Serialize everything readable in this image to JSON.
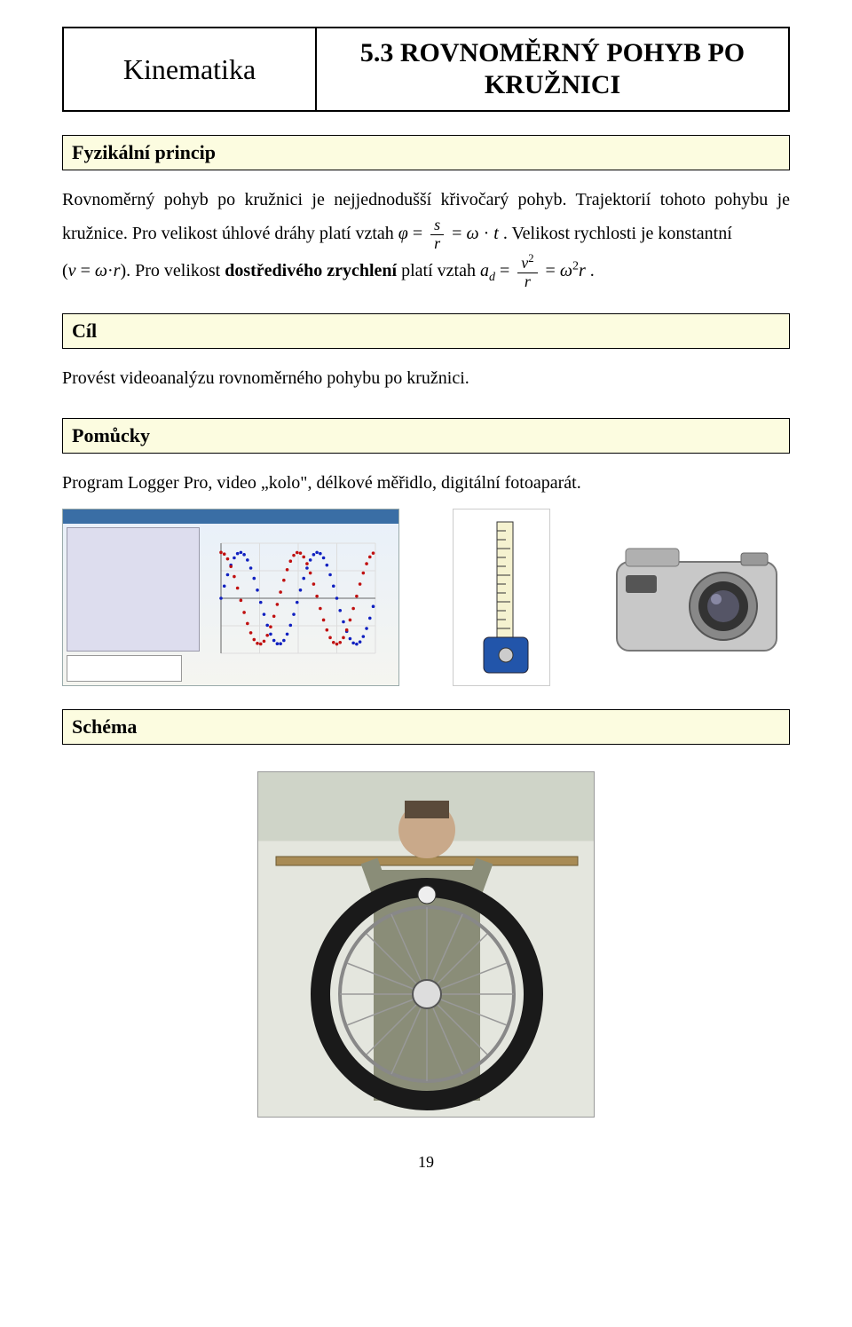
{
  "header": {
    "left": "Kinematika",
    "right": "5.3 ROVNOMĚRNÝ POHYB PO KRUŽNICI"
  },
  "sections": {
    "princip": "Fyzikální princip",
    "cil": "Cíl",
    "pomucky": "Pomůcky",
    "schema": "Schéma"
  },
  "text": {
    "p1a": "Rovnoměrný pohyb po kružnici je nejjednodušší křivočarý pohyb. Trajektorií tohoto pohybu je kružnice. Pro velikost úhlové dráhy platí vztah ",
    "p1b": ". Velikost rychlosti je konstantní",
    "p2a": "(",
    "p2b": " = ",
    "p2c": "). Pro velikost ",
    "p2bold": "dostředivého zrychlení",
    "p2d": " platí vztah ",
    "p2e": ".",
    "cil_body": "Provést videoanalýzu rovnoměrného pohybu po kružnici.",
    "pomucky_body": "Program Logger Pro, video „kolo\", délkové měřidlo, digitální fotoaparát."
  },
  "formula": {
    "phi": "φ",
    "eq": " = ",
    "s": "s",
    "r": "r",
    "omega": "ω",
    "cdot": "·",
    "t": "t",
    "v": "v",
    "a": "a",
    "d": "d",
    "two": "2"
  },
  "page_number": "19",
  "chart": {
    "type": "line",
    "series": [
      {
        "name": "X",
        "color": "#1020c0",
        "shape": "sine",
        "amp": 50,
        "period": 140,
        "phase": 0
      },
      {
        "name": "Y",
        "color": "#c01010",
        "shape": "cosine",
        "amp": 50,
        "period": 140,
        "phase": 0
      }
    ],
    "xlim": [
      0,
      280
    ],
    "ylim": [
      -60,
      60
    ],
    "grid_color": "#dddddd"
  },
  "image_labels": {
    "software": "Logger Pro screenshot",
    "tape": "tape measure",
    "camera": "digital camera",
    "wheel": "person holding bicycle wheel"
  }
}
